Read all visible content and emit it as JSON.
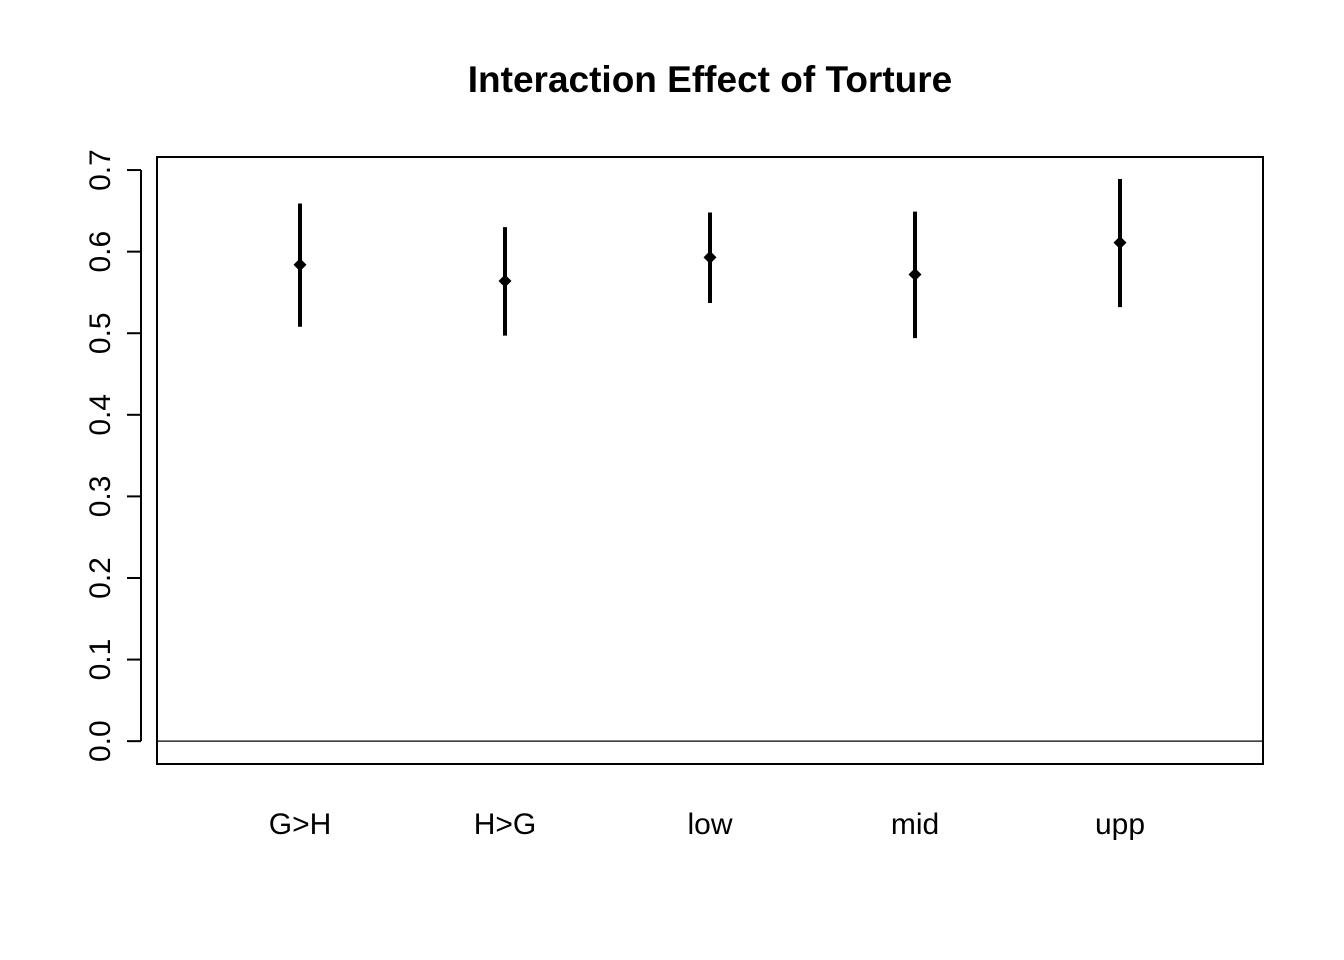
{
  "chart_data": {
    "type": "scatter",
    "title": "Interaction Effect of Torture",
    "xlabel": "",
    "ylabel": "",
    "categories": [
      "G>H",
      "H>G",
      "low",
      "mid",
      "upp"
    ],
    "series": [
      {
        "estimates": [
          0.584,
          0.564,
          0.593,
          0.572,
          0.611
        ],
        "lower": [
          0.508,
          0.497,
          0.537,
          0.494,
          0.532
        ],
        "upper": [
          0.659,
          0.63,
          0.648,
          0.649,
          0.689
        ]
      }
    ],
    "yticks": [
      "0.0",
      "0.1",
      "0.2",
      "0.3",
      "0.4",
      "0.5",
      "0.6",
      "0.7"
    ],
    "ylim": [
      -0.028,
      0.716
    ],
    "reference_line": 0,
    "grid": false,
    "colors": {
      "marks": "#000000",
      "reference_line": "#000000"
    }
  }
}
